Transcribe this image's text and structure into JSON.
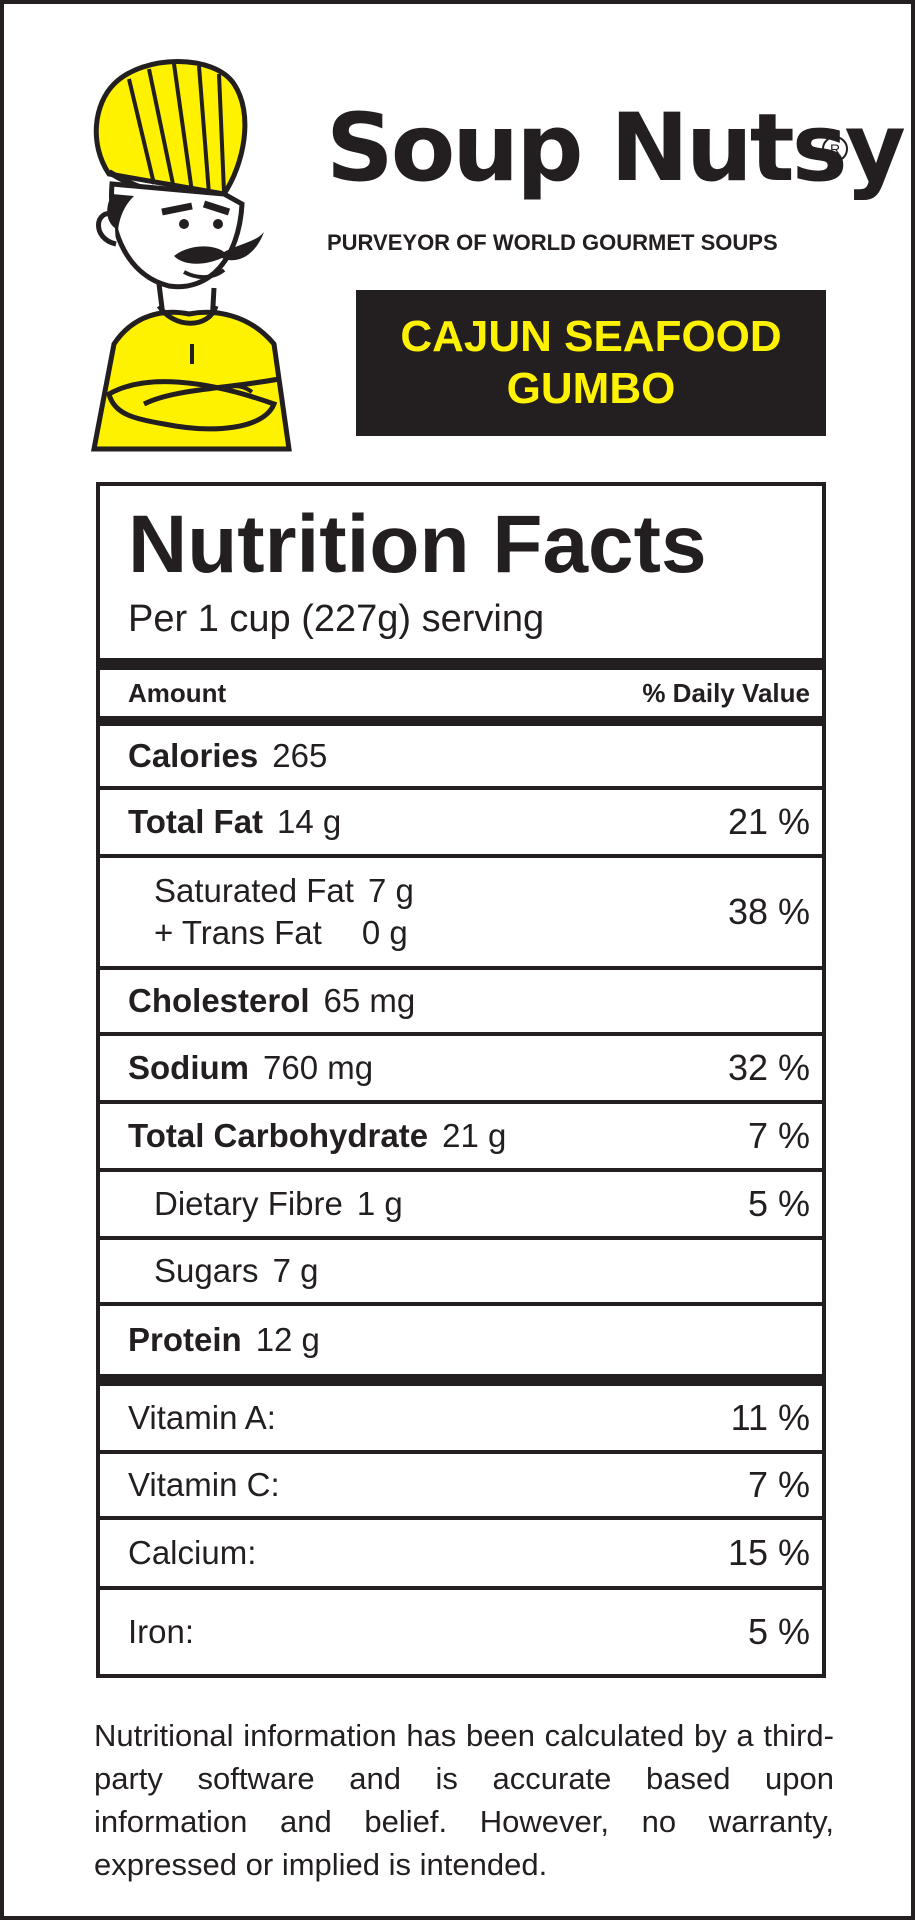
{
  "brand": {
    "name": "Soup Nutsy",
    "registered_mark": "R",
    "tagline": "PURVEYOR OF WORLD GOURMET SOUPS",
    "mascot": "chef-mascot"
  },
  "product": {
    "line1": "CAJUN SEAFOOD",
    "line2": "GUMBO"
  },
  "colors": {
    "accent": "#fff200",
    "ink": "#231f20",
    "background": "#ffffff"
  },
  "nutrition": {
    "title": "Nutrition Facts",
    "serving": "Per 1 cup (227g) serving",
    "header": {
      "amount": "Amount",
      "daily_value": "% Daily Value"
    },
    "calories": {
      "label": "Calories",
      "value": "265"
    },
    "total_fat": {
      "label": "Total Fat",
      "value": "14 g",
      "dv": "21 %"
    },
    "saturated_fat": {
      "label": "Saturated Fat",
      "value": "7 g",
      "dv": "38 %"
    },
    "trans_fat": {
      "label": "+ Trans Fat",
      "value": "0 g"
    },
    "cholesterol": {
      "label": "Cholesterol",
      "value": "65 mg"
    },
    "sodium": {
      "label": "Sodium",
      "value": "760 mg",
      "dv": "32 %"
    },
    "total_carbohydrate": {
      "label": "Total Carbohydrate",
      "value": "21 g",
      "dv": "7 %"
    },
    "dietary_fibre": {
      "label": "Dietary Fibre",
      "value": "1 g",
      "dv": "5 %"
    },
    "sugars": {
      "label": "Sugars",
      "value": "7 g"
    },
    "protein": {
      "label": "Protein",
      "value": "12 g"
    },
    "vitamins": [
      {
        "label": "Vitamin A:",
        "dv": "11 %"
      },
      {
        "label": "Vitamin C:",
        "dv": "7 %"
      },
      {
        "label": "Calcium:",
        "dv": "15 %"
      },
      {
        "label": "Iron:",
        "dv": "5 %"
      }
    ]
  },
  "disclaimer": "Nutritional information has been calculated by a third-party software and is accurate based upon information and belief.  However, no warranty, expressed or implied is intended."
}
